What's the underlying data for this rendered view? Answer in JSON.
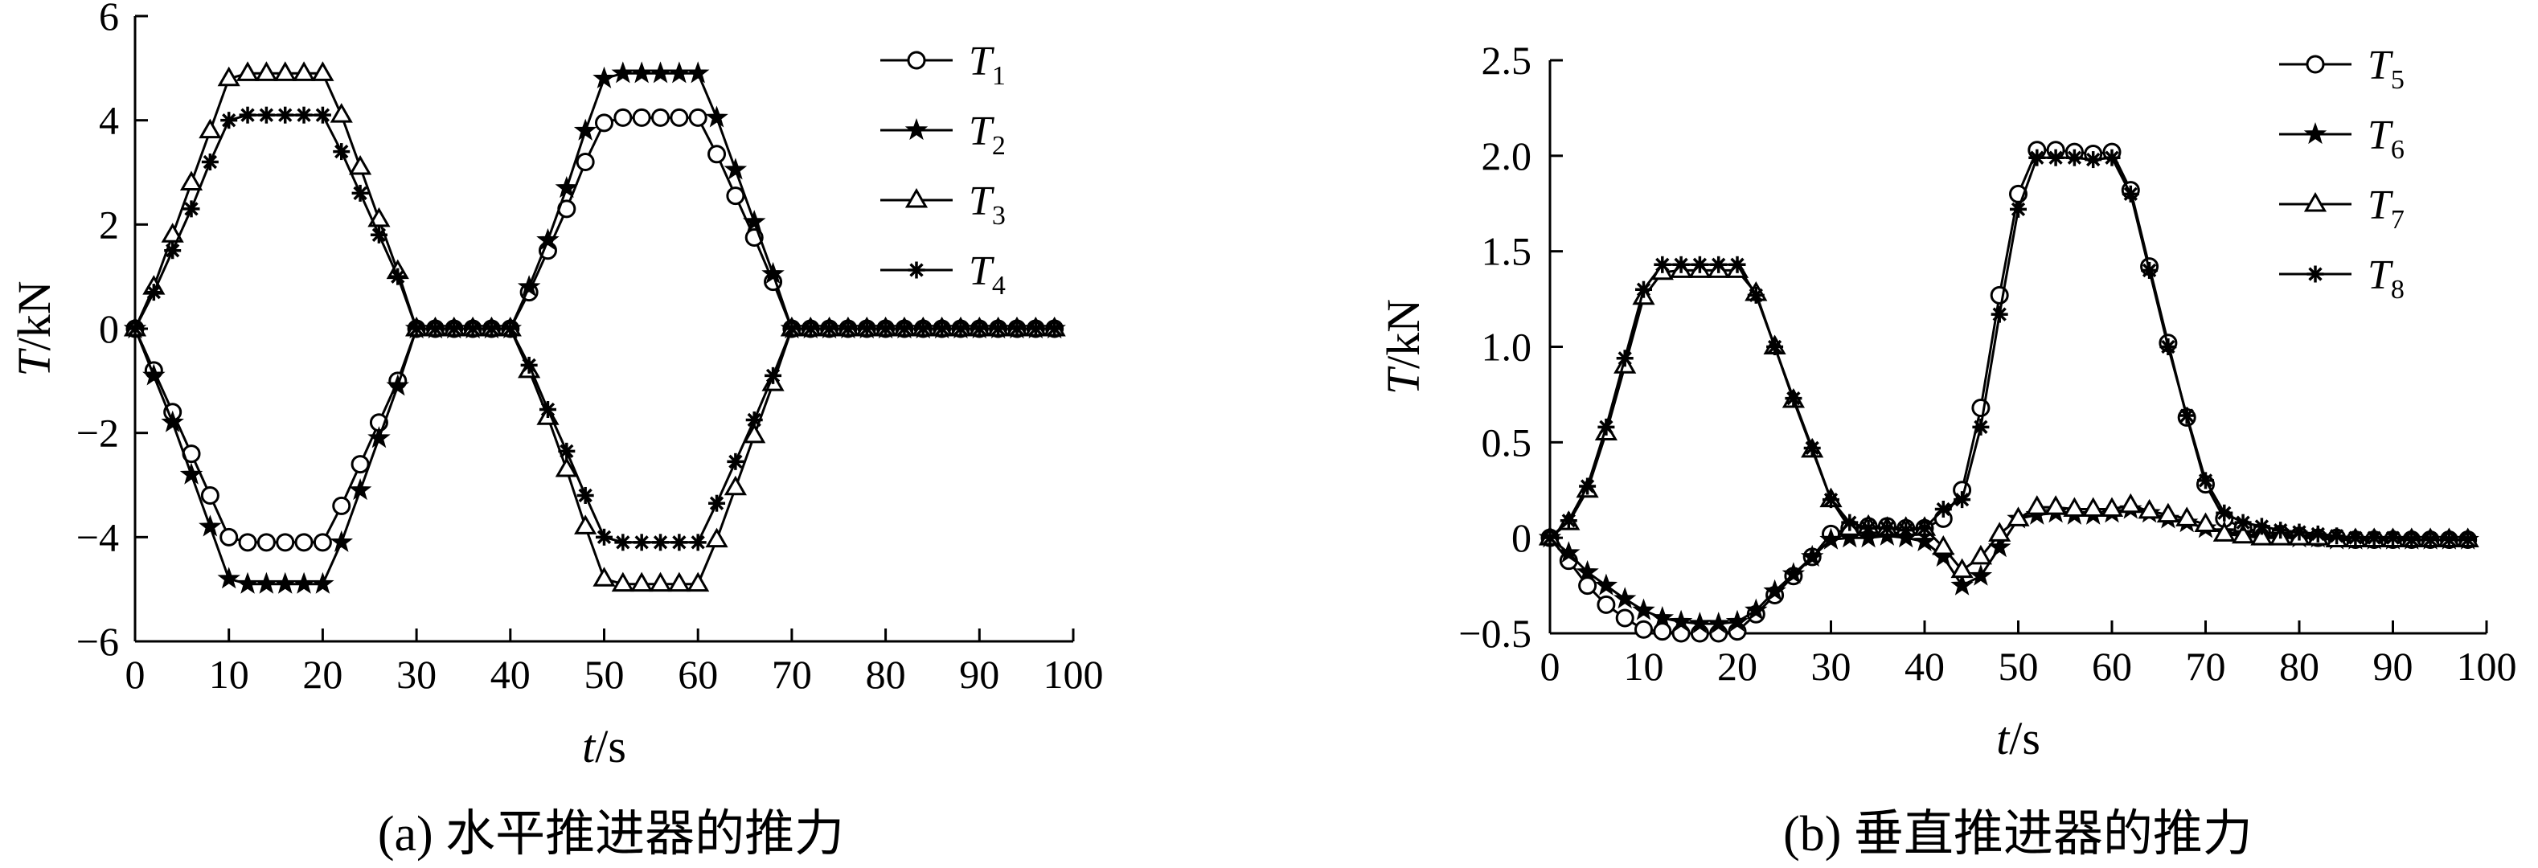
{
  "figure": {
    "caption_a": "(a) 水平推进器的推力",
    "caption_b": "(b) 垂直推进器的推力"
  },
  "chart_data": [
    {
      "type": "line",
      "title": "",
      "caption": "(a) 水平推进器的推力",
      "xlabel": "t/s",
      "ylabel": "T/kN",
      "xlim": [
        0,
        100
      ],
      "ylim": [
        -6,
        6
      ],
      "xticks": [
        "0",
        "10",
        "20",
        "30",
        "40",
        "50",
        "60",
        "70",
        "80",
        "90",
        "100"
      ],
      "yticks": [
        "−6",
        "−4",
        "−2",
        "0",
        "2",
        "4",
        "6"
      ],
      "grid": false,
      "legend": "top-right",
      "x": [
        0,
        2,
        4,
        6,
        8,
        10,
        12,
        14,
        16,
        18,
        20,
        22,
        24,
        26,
        28,
        30,
        32,
        34,
        36,
        38,
        40,
        42,
        44,
        46,
        48,
        50,
        52,
        54,
        56,
        58,
        60,
        62,
        64,
        66,
        68,
        70,
        72,
        74,
        76,
        78,
        80,
        82,
        84,
        86,
        88,
        90,
        92,
        94,
        96,
        98
      ],
      "series": [
        {
          "name": "T1",
          "label_main": "T",
          "label_sub": "1",
          "marker": "circle",
          "values": [
            0,
            -0.8,
            -1.6,
            -2.4,
            -3.2,
            -4.0,
            -4.1,
            -4.1,
            -4.1,
            -4.1,
            -4.1,
            -3.4,
            -2.6,
            -1.8,
            -1.0,
            0,
            0,
            0,
            0,
            0,
            0,
            0.7,
            1.5,
            2.3,
            3.2,
            3.95,
            4.05,
            4.05,
            4.05,
            4.05,
            4.05,
            3.35,
            2.55,
            1.75,
            0.9,
            0,
            0,
            0,
            0,
            0,
            0,
            0,
            0,
            0,
            0,
            0,
            0,
            0,
            0,
            0
          ]
        },
        {
          "name": "T2",
          "label_main": "T",
          "label_sub": "2",
          "marker": "star",
          "values": [
            0,
            -0.9,
            -1.8,
            -2.8,
            -3.8,
            -4.8,
            -4.9,
            -4.9,
            -4.9,
            -4.9,
            -4.9,
            -4.1,
            -3.1,
            -2.1,
            -1.1,
            0,
            0,
            0,
            0,
            0,
            0,
            0.8,
            1.7,
            2.7,
            3.8,
            4.8,
            4.9,
            4.9,
            4.9,
            4.9,
            4.9,
            4.05,
            3.05,
            2.05,
            1.05,
            0,
            0,
            0,
            0,
            0,
            0,
            0,
            0,
            0,
            0,
            0,
            0,
            0,
            0,
            0
          ]
        },
        {
          "name": "T3",
          "label_main": "T",
          "label_sub": "3",
          "marker": "triangle",
          "values": [
            0,
            0.8,
            1.8,
            2.8,
            3.8,
            4.8,
            4.9,
            4.9,
            4.9,
            4.9,
            4.9,
            4.1,
            3.1,
            2.1,
            1.1,
            0,
            0,
            0,
            0,
            0,
            0,
            -0.8,
            -1.7,
            -2.7,
            -3.8,
            -4.8,
            -4.9,
            -4.9,
            -4.9,
            -4.9,
            -4.9,
            -4.05,
            -3.05,
            -2.05,
            -1.05,
            0,
            0,
            0,
            0,
            0,
            0,
            0,
            0,
            0,
            0,
            0,
            0,
            0,
            0,
            0
          ]
        },
        {
          "name": "T4",
          "label_main": "T",
          "label_sub": "4",
          "marker": "asterisk",
          "values": [
            0,
            0.7,
            1.5,
            2.3,
            3.2,
            4.0,
            4.1,
            4.1,
            4.1,
            4.1,
            4.1,
            3.4,
            2.6,
            1.8,
            1.0,
            0,
            0,
            0,
            0,
            0,
            0,
            -0.7,
            -1.55,
            -2.35,
            -3.2,
            -4.0,
            -4.1,
            -4.1,
            -4.1,
            -4.1,
            -4.1,
            -3.35,
            -2.55,
            -1.75,
            -0.9,
            0,
            0,
            0,
            0,
            0,
            0,
            0,
            0,
            0,
            0,
            0,
            0,
            0,
            0,
            0
          ]
        }
      ]
    },
    {
      "type": "line",
      "title": "",
      "caption": "(b) 垂直推进器的推力",
      "xlabel": "t/s",
      "ylabel": "T/kN",
      "xlim": [
        0,
        100
      ],
      "ylim": [
        -0.5,
        2.5
      ],
      "xticks": [
        "0",
        "10",
        "20",
        "30",
        "40",
        "50",
        "60",
        "70",
        "80",
        "90",
        "100"
      ],
      "yticks": [
        "−0.5",
        "0",
        "0.5",
        "1.0",
        "1.5",
        "2.0",
        "2.5"
      ],
      "grid": false,
      "legend": "top-right",
      "x": [
        0,
        2,
        4,
        6,
        8,
        10,
        12,
        14,
        16,
        18,
        20,
        22,
        24,
        26,
        28,
        30,
        32,
        34,
        36,
        38,
        40,
        42,
        44,
        46,
        48,
        50,
        52,
        54,
        56,
        58,
        60,
        62,
        64,
        66,
        68,
        70,
        72,
        74,
        76,
        78,
        80,
        82,
        84,
        86,
        88,
        90,
        92,
        94,
        96,
        98
      ],
      "series": [
        {
          "name": "T5",
          "label_main": "T",
          "label_sub": "5",
          "marker": "circle",
          "values": [
            0,
            -0.12,
            -0.25,
            -0.35,
            -0.42,
            -0.48,
            -0.49,
            -0.5,
            -0.5,
            -0.5,
            -0.49,
            -0.4,
            -0.3,
            -0.2,
            -0.1,
            0.02,
            0.05,
            0.06,
            0.06,
            0.05,
            0.05,
            0.1,
            0.25,
            0.68,
            1.27,
            1.8,
            2.03,
            2.03,
            2.02,
            2.01,
            2.02,
            1.82,
            1.42,
            1.02,
            0.63,
            0.28,
            0.1,
            0.05,
            0.03,
            0.02,
            0.01,
            0.0,
            0.0,
            -0.01,
            -0.01,
            -0.01,
            -0.01,
            -0.01,
            -0.01,
            -0.01
          ]
        },
        {
          "name": "T6",
          "label_main": "T",
          "label_sub": "6",
          "marker": "star",
          "values": [
            0,
            -0.08,
            -0.18,
            -0.25,
            -0.32,
            -0.38,
            -0.42,
            -0.44,
            -0.45,
            -0.45,
            -0.44,
            -0.38,
            -0.28,
            -0.19,
            -0.1,
            -0.01,
            0.0,
            0.0,
            0.01,
            0.0,
            -0.02,
            -0.1,
            -0.25,
            -0.2,
            -0.05,
            0.1,
            0.12,
            0.13,
            0.12,
            0.12,
            0.13,
            0.15,
            0.13,
            0.1,
            0.08,
            0.05,
            0.03,
            0.02,
            0.01,
            0.01,
            0.0,
            0.0,
            -0.01,
            -0.01,
            -0.01,
            -0.01,
            -0.01,
            -0.01,
            -0.01,
            -0.01
          ]
        },
        {
          "name": "T7",
          "label_main": "T",
          "label_sub": "7",
          "marker": "triangle",
          "values": [
            0,
            0.08,
            0.25,
            0.55,
            0.9,
            1.26,
            1.39,
            1.4,
            1.4,
            1.4,
            1.4,
            1.28,
            1.0,
            0.72,
            0.46,
            0.2,
            0.05,
            0.06,
            0.05,
            0.05,
            0.05,
            -0.05,
            -0.17,
            -0.1,
            0.02,
            0.1,
            0.16,
            0.16,
            0.15,
            0.15,
            0.15,
            0.17,
            0.14,
            0.12,
            0.1,
            0.07,
            0.02,
            0.01,
            0.0,
            0.0,
            0.0,
            0.0,
            -0.01,
            -0.01,
            -0.01,
            -0.01,
            -0.01,
            -0.01,
            -0.01,
            -0.01
          ]
        },
        {
          "name": "T8",
          "label_main": "T",
          "label_sub": "8",
          "marker": "asterisk",
          "values": [
            0,
            0.09,
            0.27,
            0.58,
            0.94,
            1.3,
            1.43,
            1.43,
            1.43,
            1.43,
            1.43,
            1.27,
            1.0,
            0.73,
            0.47,
            0.2,
            0.08,
            0.05,
            0.05,
            0.04,
            0.05,
            0.15,
            0.2,
            0.58,
            1.17,
            1.72,
            1.99,
            1.99,
            1.99,
            1.98,
            1.99,
            1.8,
            1.4,
            1.0,
            0.64,
            0.3,
            0.13,
            0.08,
            0.06,
            0.04,
            0.03,
            0.02,
            0.01,
            0.0,
            0.0,
            0.0,
            -0.01,
            -0.01,
            -0.01,
            -0.01
          ]
        }
      ]
    }
  ]
}
